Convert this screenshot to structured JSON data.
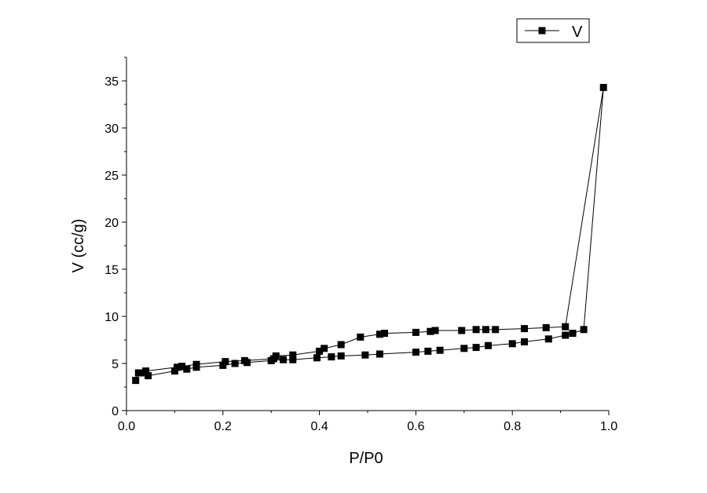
{
  "chart_data": {
    "type": "scatter",
    "title": "",
    "xlabel": "P/P0",
    "ylabel": "V (cc/g)",
    "xlim": [
      0.0,
      1.0
    ],
    "ylim": [
      0,
      37.5
    ],
    "xticks": [
      0.0,
      0.2,
      0.4,
      0.6,
      0.8,
      1.0
    ],
    "xtick_labels": [
      "0.0",
      "0.2",
      "0.4",
      "0.6",
      "0.8",
      "1.0"
    ],
    "yticks": [
      0,
      5,
      10,
      15,
      20,
      25,
      30,
      35
    ],
    "ytick_labels": [
      "0",
      "5",
      "10",
      "15",
      "20",
      "25",
      "30",
      "35"
    ],
    "grid": false,
    "legend_position": "top-right",
    "marker": "square",
    "line_color": "#000000",
    "series": [
      {
        "name": "V",
        "x": [
          0.019,
          0.025,
          0.045,
          0.1,
          0.125,
          0.145,
          0.2,
          0.225,
          0.25,
          0.3,
          0.325,
          0.345,
          0.395,
          0.425,
          0.445,
          0.495,
          0.525,
          0.6,
          0.625,
          0.65,
          0.7,
          0.725,
          0.75,
          0.8,
          0.825,
          0.875,
          0.91,
          0.925,
          0.948,
          0.989,
          0.91,
          0.87,
          0.825,
          0.765,
          0.745,
          0.725,
          0.695,
          0.64,
          0.63,
          0.6,
          0.535,
          0.525,
          0.485,
          0.445,
          0.41,
          0.4,
          0.345,
          0.31,
          0.305,
          0.245,
          0.205,
          0.145,
          0.115,
          0.105,
          0.04,
          0.03
        ],
        "y": [
          3.2,
          4.0,
          3.7,
          4.2,
          4.4,
          4.6,
          4.8,
          5.0,
          5.1,
          5.3,
          5.4,
          5.4,
          5.6,
          5.7,
          5.8,
          5.9,
          6.0,
          6.2,
          6.3,
          6.4,
          6.6,
          6.7,
          6.9,
          7.1,
          7.3,
          7.6,
          8.0,
          8.2,
          8.6,
          34.3,
          8.9,
          8.8,
          8.7,
          8.6,
          8.6,
          8.6,
          8.5,
          8.5,
          8.4,
          8.3,
          8.2,
          8.1,
          7.8,
          7.0,
          6.6,
          6.3,
          5.9,
          5.8,
          5.5,
          5.3,
          5.2,
          4.9,
          4.7,
          4.6,
          4.2,
          4.0
        ]
      }
    ]
  }
}
